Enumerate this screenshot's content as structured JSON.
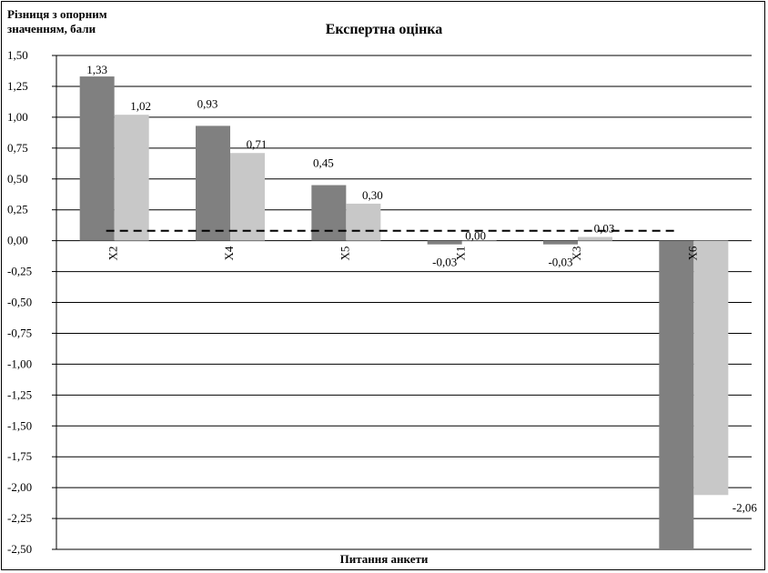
{
  "chart_data": {
    "type": "bar",
    "title": "Експертна оцінка",
    "ylabel": "Різниця з опорним\nзначенням, бали",
    "xlabel": "Питання анкети",
    "categories": [
      "X2",
      "X4",
      "X5",
      "X1",
      "X3",
      "X6"
    ],
    "series": [
      {
        "values": [
          1.33,
          0.93,
          0.45,
          -0.03,
          -0.03,
          -2.5
        ],
        "labels": [
          "1,33",
          "0,93",
          "0,45",
          "-0,03",
          "-0,03",
          ""
        ]
      },
      {
        "values": [
          1.02,
          0.71,
          0.3,
          0.0,
          0.03,
          -2.06
        ],
        "labels": [
          "1,02",
          "0,71",
          "0,30",
          "0,00",
          "0,03",
          "-2,06"
        ]
      }
    ],
    "reference_line": 0.08,
    "ylim": [
      -2.5,
      1.5
    ],
    "ytick_step": 0.25,
    "grid": true,
    "colors": {
      "series1": "#808080",
      "series2": "#c8c8c8",
      "reference": "#000000"
    }
  }
}
